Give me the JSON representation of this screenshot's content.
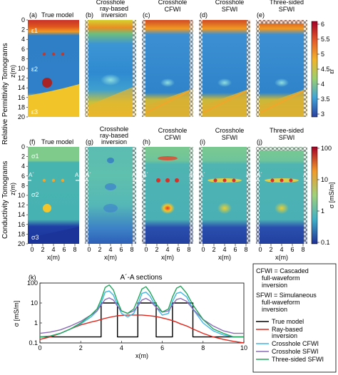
{
  "row1": {
    "side_label": "Relative Permittivity Tomograms",
    "axis_label": "z(m)",
    "y_ticks": [
      "0",
      "2",
      "4",
      "6",
      "8",
      "10",
      "12",
      "14",
      "16",
      "18",
      "20"
    ],
    "colorbar": {
      "label": "εr",
      "ticks": [
        "6",
        "5.5",
        "5",
        "4.5",
        "4",
        "3.5",
        "3"
      ]
    },
    "panels": [
      {
        "tag": "(a)",
        "title": [
          "True model"
        ]
      },
      {
        "tag": "(b)",
        "title": [
          "Crosshole",
          "ray-based",
          "inversion"
        ]
      },
      {
        "tag": "(c)",
        "title": [
          "Crosshole",
          "CFWI"
        ]
      },
      {
        "tag": "(d)",
        "title": [
          "Crosshole",
          "SFWI"
        ]
      },
      {
        "tag": "(e)",
        "title": [
          "Three-sided",
          "SFWI"
        ]
      }
    ],
    "labels": {
      "eps1": "ε1",
      "eps2": "ε2",
      "eps3": "ε3"
    }
  },
  "row2": {
    "side_label": "Conductivity Tomograms",
    "axis_label": "z(m)",
    "y_ticks": [
      "0",
      "2",
      "4",
      "6",
      "8",
      "10",
      "12",
      "14",
      "16",
      "18",
      "20"
    ],
    "x_ticks": [
      "0",
      "2",
      "4",
      "6",
      "8"
    ],
    "x_label": "x(m)",
    "colorbar": {
      "label": "σ [mS/m]",
      "ticks": [
        "100",
        "10",
        "1",
        "0.1"
      ]
    },
    "panels": [
      {
        "tag": "(f)",
        "title": [
          "True model"
        ]
      },
      {
        "tag": "(g)",
        "title": [
          "Crosshole",
          "ray-based",
          "inversion"
        ]
      },
      {
        "tag": "(h)",
        "title": [
          "Crosshole",
          "CFWI"
        ]
      },
      {
        "tag": "(i)",
        "title": [
          "Crosshole",
          "SFWI"
        ]
      },
      {
        "tag": "(j)",
        "title": [
          "Three-sided",
          "SFWI"
        ]
      }
    ],
    "labels": {
      "sig1": "σ1",
      "sig2": "σ2",
      "sig3": "σ3",
      "a_prime": "A´",
      "a": "A"
    }
  },
  "notes": {
    "cfwi": "CFWI = Cascaded full-waveform inversion",
    "sfwi": "SFWI = Simulaneous full-waveform inversion"
  },
  "chart_data": {
    "type": "line",
    "tag": "(k)",
    "title": "A´-A sections",
    "xlabel": "x(m)",
    "ylabel": "σ [mS/m]",
    "xlim": [
      0,
      10
    ],
    "ylim": [
      0.1,
      100
    ],
    "yscale": "log",
    "x_ticks": [
      "0",
      "2",
      "4",
      "6",
      "8",
      "10"
    ],
    "y_ticks": [
      "100",
      "10",
      "1",
      "0.1"
    ],
    "legend": "right",
    "x": [
      0,
      0.5,
      1,
      1.5,
      2,
      2.5,
      2.8,
      3.0,
      3.2,
      3.4,
      3.6,
      3.8,
      4.0,
      4.3,
      4.6,
      4.8,
      5.0,
      5.2,
      5.4,
      5.7,
      6.0,
      6.3,
      6.5,
      6.7,
      6.9,
      7.2,
      7.5,
      8,
      8.5,
      9,
      9.5,
      10
    ],
    "series": [
      {
        "name": "True model",
        "color": "#000000",
        "values": [
          0.2,
          0.2,
          0.2,
          0.2,
          0.2,
          0.2,
          0.2,
          10,
          10,
          10,
          10,
          0.2,
          0.2,
          0.2,
          0.2,
          10,
          10,
          10,
          10,
          0.2,
          0.2,
          0.2,
          10,
          10,
          10,
          10,
          0.2,
          0.2,
          0.2,
          0.2,
          0.2,
          0.2
        ]
      },
      {
        "name": "Ray-based inversion",
        "color": "#e0261c",
        "values": [
          0.15,
          0.2,
          0.3,
          0.5,
          0.8,
          1.1,
          1.3,
          1.5,
          1.7,
          1.9,
          2.1,
          2.3,
          2.4,
          2.5,
          2.5,
          2.5,
          2.5,
          2.4,
          2.3,
          2.1,
          1.8,
          1.5,
          1.3,
          1.1,
          0.9,
          0.7,
          0.5,
          0.3,
          0.2,
          0.15,
          0.12,
          0.1
        ]
      },
      {
        "name": "Crosshole CFWI",
        "color": "#3fb5e6",
        "values": [
          0.2,
          0.22,
          0.3,
          0.5,
          0.9,
          2,
          4,
          10,
          35,
          40,
          25,
          8,
          3,
          2,
          3,
          8,
          30,
          35,
          22,
          6,
          2.5,
          3,
          12,
          30,
          35,
          20,
          5,
          1,
          0.4,
          0.25,
          0.2,
          0.2
        ]
      },
      {
        "name": "Crosshole SFWI",
        "color": "#8b6bb8",
        "values": [
          0.3,
          0.35,
          0.45,
          0.7,
          1.2,
          2.5,
          4,
          8,
          15,
          18,
          14,
          7,
          4,
          3,
          4,
          7,
          14,
          17,
          13,
          6,
          3.5,
          4,
          8,
          15,
          17,
          12,
          5,
          1.5,
          0.7,
          0.4,
          0.3,
          0.3
        ]
      },
      {
        "name": "Three-sided SFWI",
        "color": "#1fa55a",
        "values": [
          0.2,
          0.22,
          0.3,
          0.5,
          1,
          2.5,
          5,
          15,
          60,
          80,
          45,
          12,
          4,
          3,
          5,
          15,
          50,
          65,
          35,
          9,
          3.5,
          5,
          20,
          55,
          70,
          30,
          8,
          1.5,
          0.5,
          0.3,
          0.2,
          0.2
        ]
      }
    ]
  }
}
